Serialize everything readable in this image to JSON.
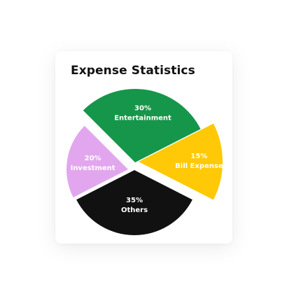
{
  "chart_data": {
    "type": "pie",
    "title": "Expense Statistics",
    "exploded": true,
    "slices": [
      {
        "name": "Entertainment",
        "percent": 30,
        "label": "30%",
        "color": "#16964A"
      },
      {
        "name": "Bill Expense",
        "percent": 15,
        "label": "15%",
        "color": "#FFC907"
      },
      {
        "name": "Others",
        "percent": 35,
        "label": "35%",
        "color": "#111111"
      },
      {
        "name": "Investment",
        "percent": 20,
        "label": "20%",
        "color": "#E2A6EE"
      }
    ]
  }
}
